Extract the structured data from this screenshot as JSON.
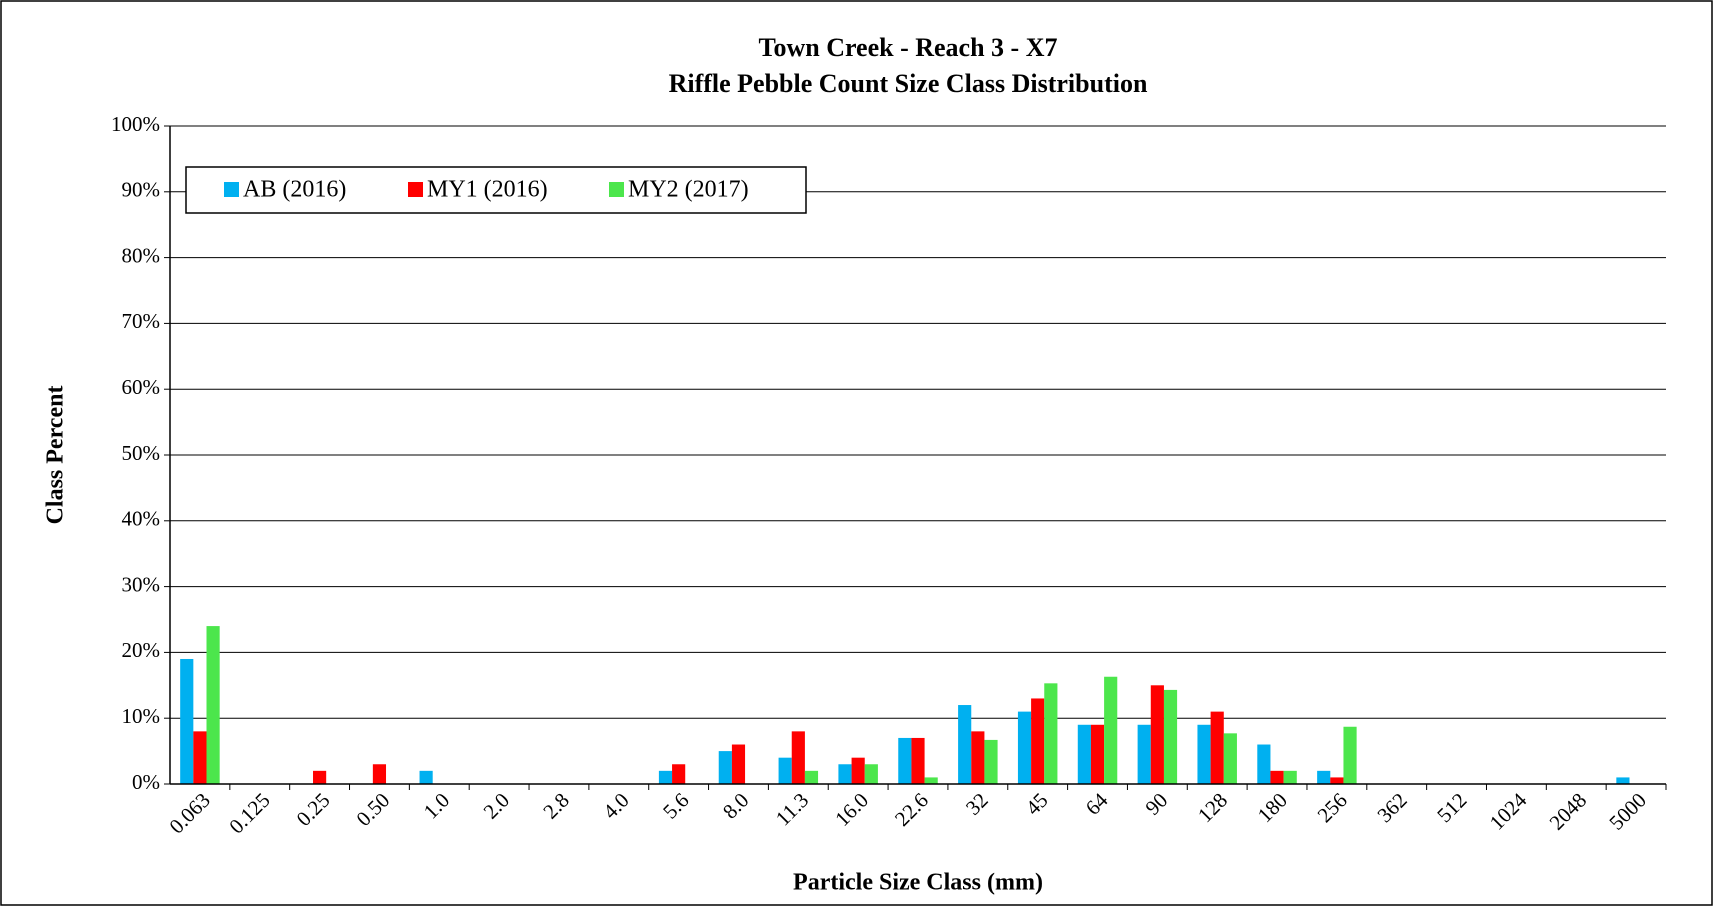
{
  "chart_data": {
    "type": "bar",
    "title": "Town Creek - Reach 3 - X7",
    "subtitle": "Riffle Pebble Count Size Class Distribution",
    "xlabel": "Particle Size Class (mm)",
    "ylabel": "Class Percent",
    "categories": [
      "0.063",
      "0.125",
      "0.25",
      "0.50",
      "1.0",
      "2.0",
      "2.8",
      "4.0",
      "5.6",
      "8.0",
      "11.3",
      "16.0",
      "22.6",
      "32",
      "45",
      "64",
      "90",
      "128",
      "180",
      "256",
      "362",
      "512",
      "1024",
      "2048",
      "5000"
    ],
    "series": [
      {
        "name": "AB (2016)",
        "color": "#00b0f0",
        "values": [
          19,
          0,
          0,
          0,
          2,
          0,
          0,
          0,
          2,
          5,
          4,
          3,
          7,
          12,
          11,
          9,
          9,
          9,
          6,
          2,
          0,
          0,
          0,
          0,
          1
        ]
      },
      {
        "name": "MY1 (2016)",
        "color": "#ff0000",
        "values": [
          8,
          0,
          2,
          3,
          0,
          0,
          0,
          0,
          3,
          6,
          8,
          4,
          7,
          8,
          13,
          9,
          15,
          11,
          2,
          1,
          0,
          0,
          0,
          0,
          0
        ]
      },
      {
        "name": "MY2 (2017)",
        "color": "#4ce64c",
        "values": [
          24,
          0,
          0,
          0,
          0,
          0,
          0,
          0,
          0,
          0,
          2,
          3,
          1,
          6.7,
          15.3,
          16.3,
          14.3,
          7.7,
          2,
          8.7,
          0,
          0,
          0,
          0,
          0
        ]
      }
    ],
    "ylim": [
      0,
      100
    ],
    "yticks": [
      {
        "value": 0,
        "label": "0%"
      },
      {
        "value": 10,
        "label": "10%"
      },
      {
        "value": 20,
        "label": "20%"
      },
      {
        "value": 30,
        "label": "30%"
      },
      {
        "value": 40,
        "label": "40%"
      },
      {
        "value": 50,
        "label": "50%"
      },
      {
        "value": 60,
        "label": "60%"
      },
      {
        "value": 70,
        "label": "70%"
      },
      {
        "value": 80,
        "label": "80%"
      },
      {
        "value": 90,
        "label": "90%"
      },
      {
        "value": 100,
        "label": "100%"
      }
    ],
    "grid": true,
    "legend": "upper left"
  }
}
